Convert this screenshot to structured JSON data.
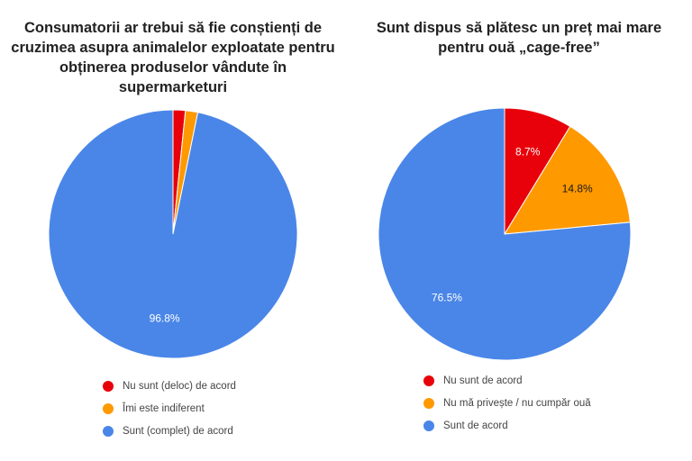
{
  "chart_data": [
    {
      "type": "pie",
      "title": "Consumatorii ar trebui să fie conștienți de cruzimea asupra animalelor exploatate pentru obținerea produselor vândute în supermarketuri",
      "categories": [
        "Nu sunt (deloc) de acord",
        "Îmi este indiferent",
        "Sunt (complet) de acord"
      ],
      "values": [
        1.6,
        1.6,
        96.8
      ],
      "colors": [
        "#e8000b",
        "#ff9900",
        "#4a86e8"
      ],
      "slice_labels": [
        "",
        "",
        "96.8%"
      ],
      "legend_position": "bottom"
    },
    {
      "type": "pie",
      "title": "Sunt dispus să plătesc un preț mai mare pentru ouă „cage-free”",
      "categories": [
        "Nu sunt de acord",
        "Nu mă privește / nu cumpăr ouă",
        "Sunt de acord"
      ],
      "values": [
        8.7,
        14.8,
        76.5
      ],
      "colors": [
        "#e8000b",
        "#ff9900",
        "#4a86e8"
      ],
      "slice_labels": [
        "8.7%",
        "14.8%",
        "76.5%"
      ],
      "legend_position": "bottom"
    }
  ]
}
